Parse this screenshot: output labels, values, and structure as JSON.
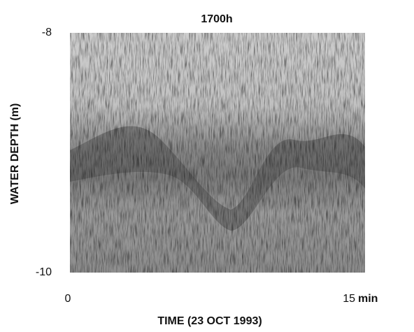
{
  "chart_data": {
    "type": "heatmap",
    "title": "1700h",
    "xlabel": "TIME (23 OCT 1993)",
    "ylabel": "WATER DEPTH (m)",
    "x_unit": "min",
    "xlim": [
      0,
      15
    ],
    "ylim": [
      -10,
      -8
    ],
    "xticks": [
      0,
      15
    ],
    "yticks": [
      -8,
      -10
    ]
  }
}
